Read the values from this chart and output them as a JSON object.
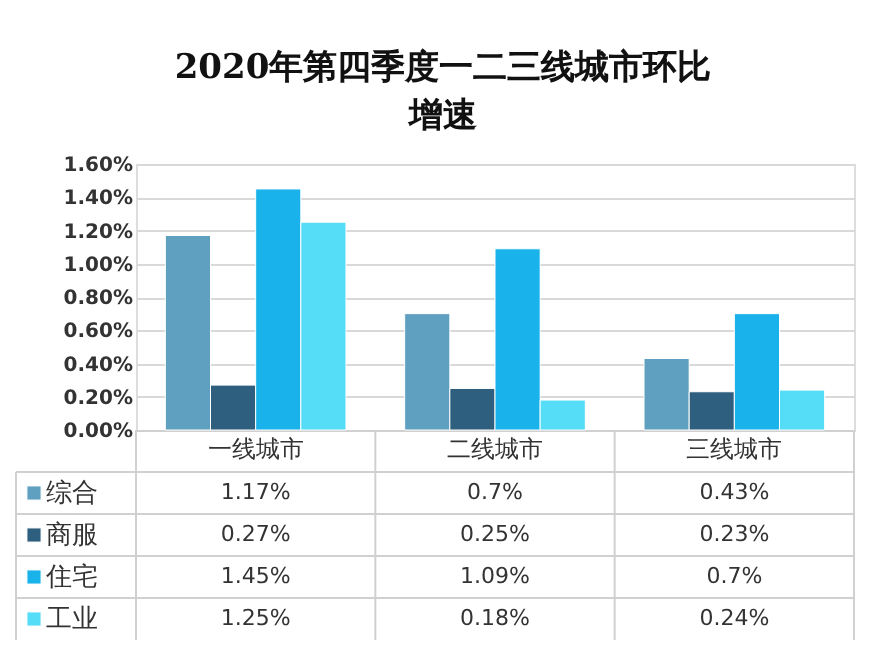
{
  "chart_data": {
    "type": "bar",
    "title": "2020年第四季度一二三线城市环比增速",
    "categories": [
      "一线城市",
      "二线城市",
      "三线城市"
    ],
    "series": [
      {
        "name": "综合",
        "color": "#5f9fc0",
        "values": [
          1.17,
          0.7,
          0.43
        ]
      },
      {
        "name": "商服",
        "color": "#2f5f7f",
        "values": [
          0.27,
          0.25,
          0.23
        ]
      },
      {
        "name": "住宅",
        "color": "#19b2ea",
        "values": [
          1.45,
          1.09,
          0.7
        ]
      },
      {
        "name": "工业",
        "color": "#55dcf6",
        "values": [
          1.25,
          0.18,
          0.24
        ]
      }
    ],
    "value_labels": [
      [
        "1.17%",
        "0.7%",
        "0.43%"
      ],
      [
        "0.27%",
        "0.25%",
        "0.23%"
      ],
      [
        "1.45%",
        "1.09%",
        "0.7%"
      ],
      [
        "1.25%",
        "0.18%",
        "0.24%"
      ]
    ],
    "ylim": [
      0,
      1.6
    ],
    "yticks": [
      {
        "value": 0,
        "label": "0.00%"
      },
      {
        "value": 0.2,
        "label": "0.20%"
      },
      {
        "value": 0.4,
        "label": "0.40%"
      },
      {
        "value": 0.6,
        "label": "0.60%"
      },
      {
        "value": 0.8,
        "label": "0.80%"
      },
      {
        "value": 1.0,
        "label": "1.00%"
      },
      {
        "value": 1.2,
        "label": "1.20%"
      },
      {
        "value": 1.4,
        "label": "1.40%"
      },
      {
        "value": 1.6,
        "label": "1.60%"
      }
    ],
    "grid": "y",
    "legend": "bottom left"
  }
}
